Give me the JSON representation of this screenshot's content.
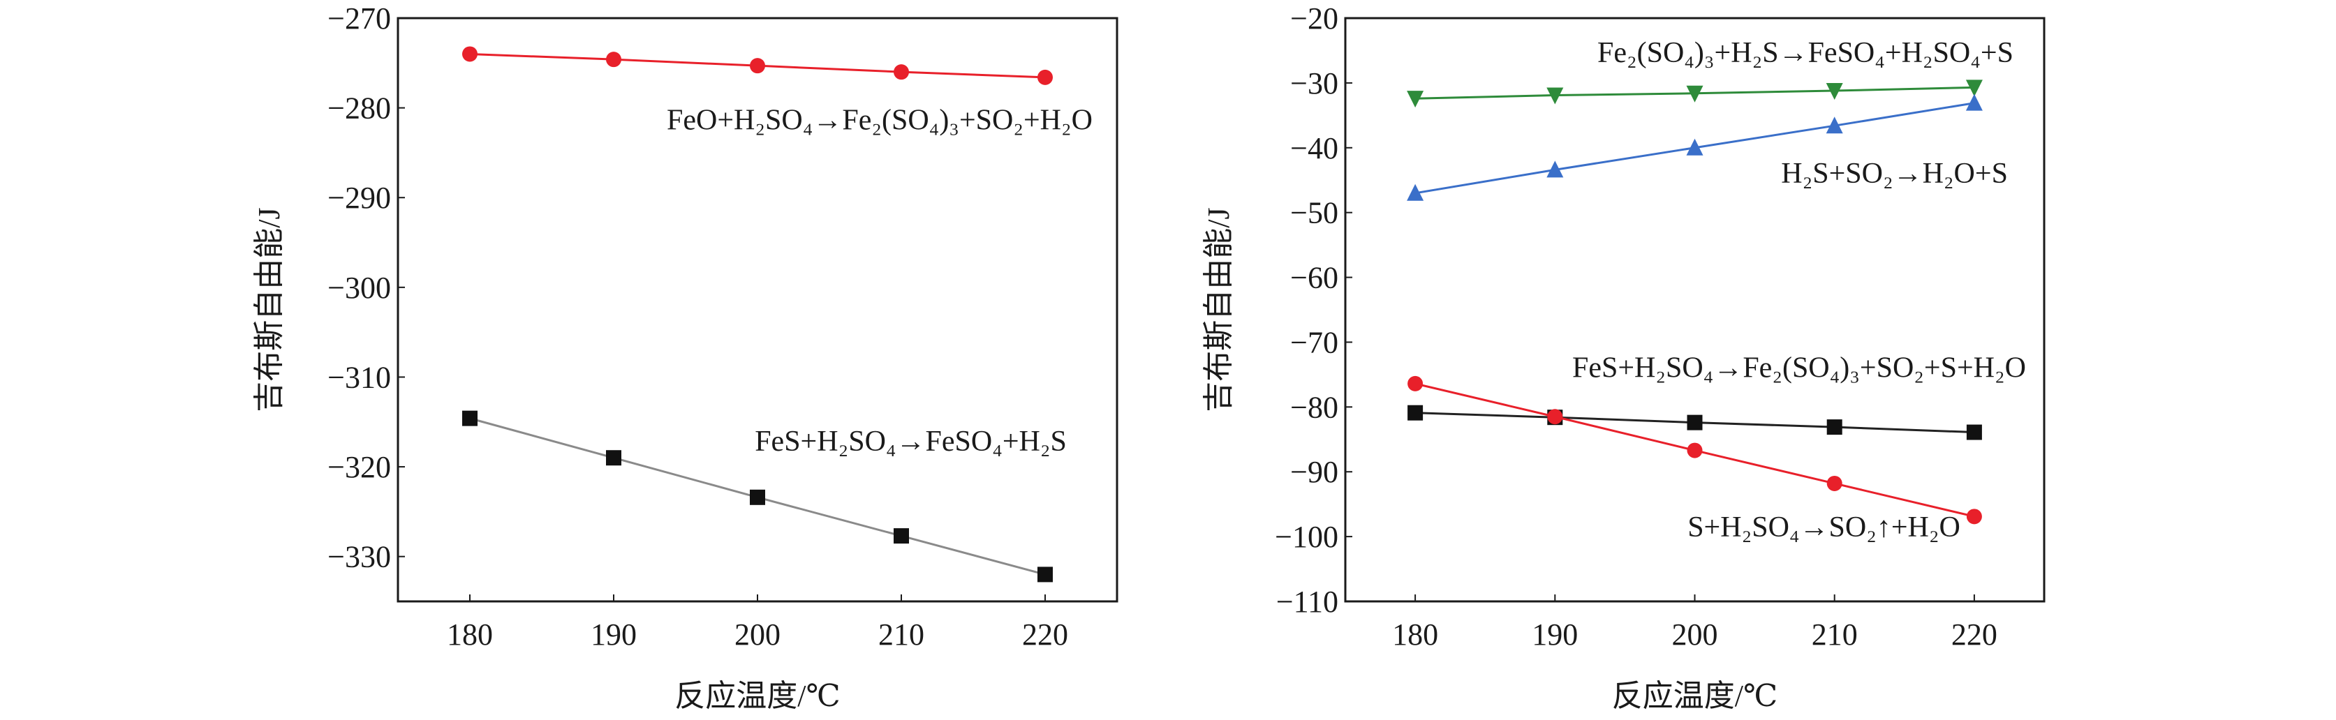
{
  "chart_data": [
    {
      "type": "line",
      "title": "",
      "xlabel": "反应温度/℃",
      "ylabel": "吉布斯自由能/J",
      "xlim": [
        175,
        225
      ],
      "ylim": [
        -335,
        -270
      ],
      "xticks": [
        180,
        190,
        200,
        210,
        220
      ],
      "yticks": [
        -270,
        -280,
        -290,
        -300,
        -310,
        -320,
        -330
      ],
      "grid": false,
      "x": [
        180,
        190,
        200,
        210,
        220
      ],
      "series": [
        {
          "name": "FeO+H₂SO₄→Fe₂(SO₄)₃+SO₂+H₂O",
          "color": "#e8202a",
          "marker": "circle",
          "values": [
            -274.0,
            -274.6,
            -275.3,
            -276.0,
            -276.6
          ]
        },
        {
          "name": "FeS+H₂SO₄→FeSO₄+H₂S",
          "color": "#111111",
          "line_color": "#8a8a8a",
          "marker": "square",
          "values": [
            -314.6,
            -319.0,
            -323.4,
            -327.7,
            -332.0
          ]
        }
      ]
    },
    {
      "type": "line",
      "title": "",
      "xlabel": "反应温度/℃",
      "ylabel": "吉布斯自由能/J",
      "xlim": [
        175,
        225
      ],
      "ylim": [
        -110,
        -20
      ],
      "xticks": [
        180,
        190,
        200,
        210,
        220
      ],
      "yticks": [
        -20,
        -30,
        -40,
        -50,
        -60,
        -70,
        -80,
        -90,
        -100,
        -110
      ],
      "grid": false,
      "x": [
        180,
        190,
        200,
        210,
        220
      ],
      "series": [
        {
          "name": "Fe₂(SO₄)₃+H₂S→FeSO₄+H₂SO₄+S",
          "color": "#2e8b3a",
          "marker": "triangle-down",
          "values": [
            -32.4,
            -31.9,
            -31.6,
            -31.2,
            -30.7
          ]
        },
        {
          "name": "H₂S+SO₂→H₂O+S",
          "color": "#3a6fc9",
          "marker": "triangle-up",
          "values": [
            -47.0,
            -43.4,
            -40.0,
            -36.6,
            -33.1
          ]
        },
        {
          "name": "FeS+H₂SO₄→Fe₂(SO₄)₃+SO₂+S+H₂O",
          "color": "#111111",
          "line_color": "#222222",
          "marker": "square",
          "values": [
            -80.9,
            -81.6,
            -82.4,
            -83.1,
            -83.9
          ]
        },
        {
          "name": "S+H₂SO₄→SO₂↑+H₂O",
          "color": "#e8202a",
          "marker": "circle",
          "values": [
            -76.4,
            -81.5,
            -86.7,
            -91.8,
            -96.9
          ]
        }
      ]
    }
  ]
}
